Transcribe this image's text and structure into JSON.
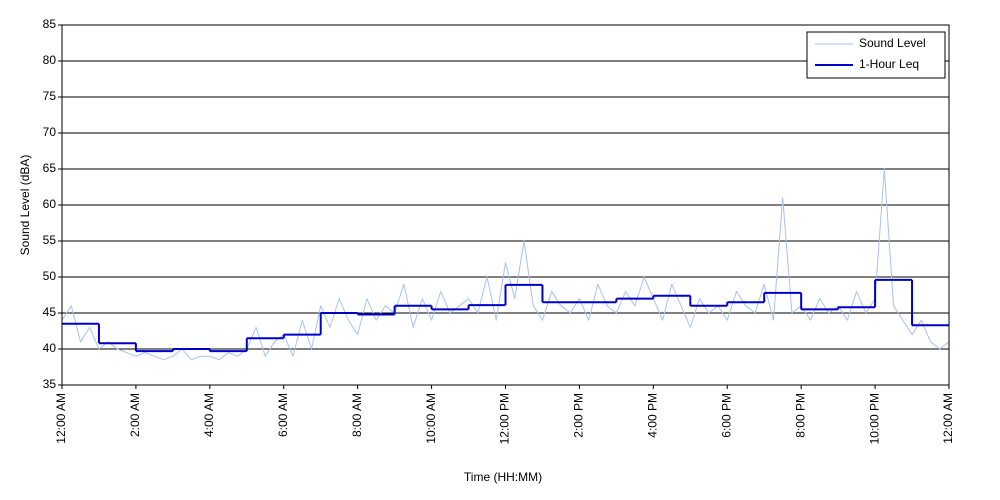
{
  "chart_data": {
    "type": "line",
    "xlabel": "Time (HH:MM)",
    "ylabel": "Sound Level (dBA)",
    "xlim": [
      0,
      24
    ],
    "ylim": [
      35,
      85
    ],
    "xticks": [
      {
        "value": 0,
        "label": "12:00 AM"
      },
      {
        "value": 2,
        "label": "2:00 AM"
      },
      {
        "value": 4,
        "label": "4:00 AM"
      },
      {
        "value": 6,
        "label": "6:00 AM"
      },
      {
        "value": 8,
        "label": "8:00 AM"
      },
      {
        "value": 10,
        "label": "10:00 AM"
      },
      {
        "value": 12,
        "label": "12:00 PM"
      },
      {
        "value": 14,
        "label": "2:00 PM"
      },
      {
        "value": 16,
        "label": "4:00 PM"
      },
      {
        "value": 18,
        "label": "6:00 PM"
      },
      {
        "value": 20,
        "label": "8:00 PM"
      },
      {
        "value": 22,
        "label": "10:00 PM"
      },
      {
        "value": 24,
        "label": "12:00 AM"
      }
    ],
    "yticks": [
      35,
      40,
      45,
      50,
      55,
      60,
      65,
      70,
      75,
      80,
      85
    ],
    "grid": true,
    "legend": "upper right",
    "series": [
      {
        "name": "Sound Level",
        "color": "#a9c1f2",
        "width": 1,
        "x": [
          0,
          0.25,
          0.5,
          0.75,
          1,
          1.25,
          1.5,
          1.75,
          2,
          2.25,
          2.5,
          2.75,
          3,
          3.25,
          3.5,
          3.75,
          4,
          4.25,
          4.5,
          4.75,
          5,
          5.25,
          5.5,
          5.75,
          6,
          6.25,
          6.5,
          6.75,
          7,
          7.25,
          7.5,
          7.75,
          8,
          8.25,
          8.5,
          8.75,
          9,
          9.25,
          9.5,
          9.75,
          10,
          10.25,
          10.5,
          10.75,
          11,
          11.25,
          11.5,
          11.75,
          12,
          12.25,
          12.5,
          12.75,
          13,
          13.25,
          13.5,
          13.75,
          14,
          14.25,
          14.5,
          14.75,
          15,
          15.25,
          15.5,
          15.75,
          16,
          16.25,
          16.5,
          16.75,
          17,
          17.25,
          17.5,
          17.75,
          18,
          18.25,
          18.5,
          18.75,
          19,
          19.25,
          19.5,
          19.75,
          20,
          20.25,
          20.5,
          20.75,
          21,
          21.25,
          21.5,
          21.75,
          22,
          22.25,
          22.5,
          22.75,
          23,
          23.25,
          23.5,
          23.75,
          24
        ],
        "values": [
          44,
          46,
          41,
          43,
          40,
          41,
          40,
          39.5,
          39,
          39.5,
          39,
          38.5,
          39,
          40,
          38.5,
          39,
          39,
          38.5,
          39.5,
          39,
          40,
          43,
          39,
          41,
          42,
          39,
          44,
          40,
          46,
          43,
          47,
          44,
          42,
          47,
          44,
          46,
          45,
          49,
          43,
          47,
          44,
          48,
          45,
          46,
          47,
          45,
          50,
          44,
          52,
          47,
          55,
          46,
          44,
          48,
          46,
          45,
          47,
          44,
          49,
          46,
          45,
          48,
          46,
          50,
          47,
          44,
          49,
          46,
          43,
          47,
          45,
          46,
          44,
          48,
          46,
          45,
          49,
          44,
          61,
          45,
          46,
          44,
          47,
          45,
          46,
          44,
          48,
          45,
          47,
          65,
          46,
          44,
          42,
          44,
          41,
          40,
          41
        ]
      },
      {
        "name": "1-Hour Leq",
        "color": "#0000cc",
        "width": 2,
        "drawstyle": "steps-post",
        "x": [
          0,
          1,
          2,
          3,
          4,
          5,
          6,
          7,
          8,
          9,
          10,
          11,
          12,
          13,
          14,
          15,
          16,
          17,
          18,
          19,
          20,
          21,
          22,
          23
        ],
        "values": [
          43.5,
          40.8,
          39.7,
          40.0,
          39.7,
          41.5,
          42.0,
          45.0,
          44.8,
          46.0,
          45.5,
          46.1,
          48.9,
          46.5,
          46.5,
          47.0,
          47.4,
          46.0,
          46.5,
          47.8,
          45.5,
          45.8,
          49.6,
          43.3
        ]
      }
    ]
  }
}
